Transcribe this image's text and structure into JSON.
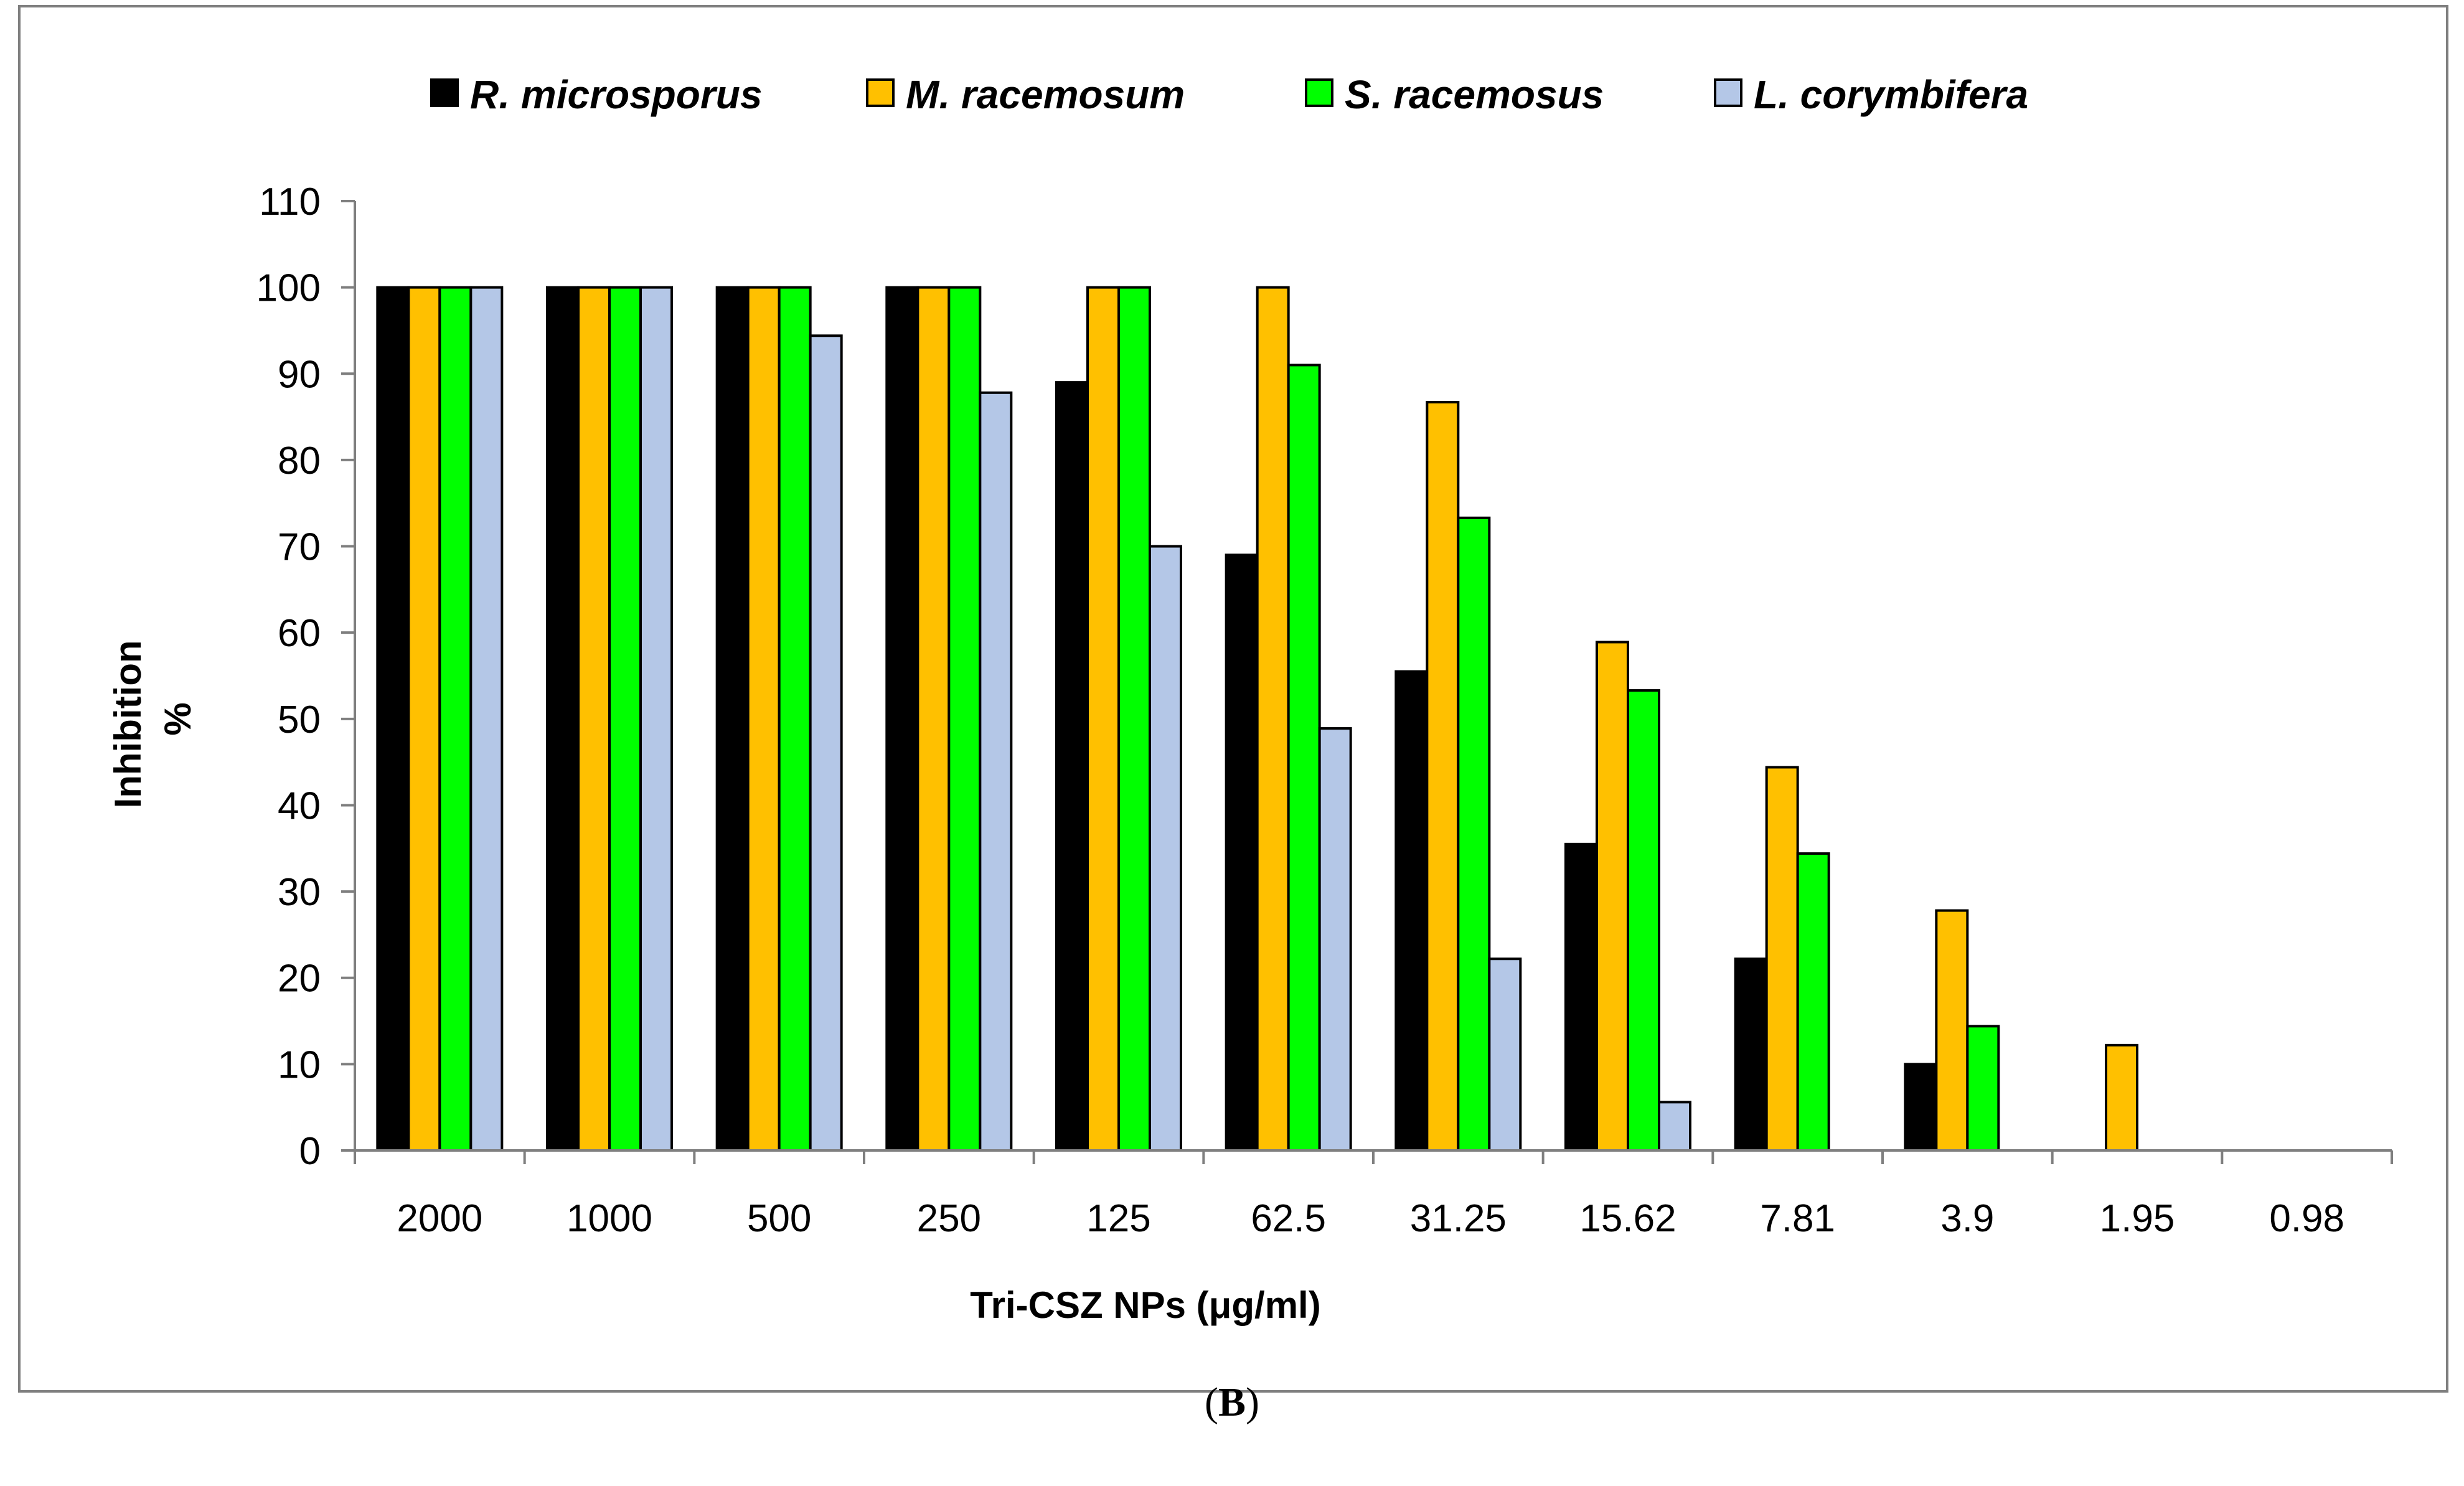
{
  "chart_data": {
    "type": "bar",
    "title": "",
    "xlabel": "Tri-CSZ NPs (μg/ml)",
    "ylabel": [
      "Inhibition",
      "%"
    ],
    "ylim": [
      0,
      110
    ],
    "yticks": [
      0,
      10,
      20,
      30,
      40,
      50,
      60,
      70,
      80,
      90,
      100,
      110
    ],
    "grid": false,
    "legend_position": "top",
    "categories": [
      "2000",
      "1000",
      "500",
      "250",
      "125",
      "62.5",
      "31.25",
      "15.62",
      "7.81",
      "3.9",
      "1.95",
      "0.98"
    ],
    "series": [
      {
        "name": "R. microsporus",
        "color": "#000000",
        "values": [
          100,
          100,
          100,
          100,
          89,
          69,
          55.5,
          35.5,
          22.2,
          10,
          0,
          0
        ]
      },
      {
        "name": "M. racemosum",
        "color": "#FFC000",
        "values": [
          100,
          100,
          100,
          100,
          100,
          100,
          86.7,
          58.9,
          44.4,
          27.8,
          12.2,
          0
        ]
      },
      {
        "name": "S. racemosus",
        "color": "#00FF00",
        "values": [
          100,
          100,
          100,
          100,
          100,
          91,
          73.3,
          53.3,
          34.4,
          14.4,
          0,
          0
        ]
      },
      {
        "name": "L. corymbifera",
        "color": "#B4C7E7",
        "values": [
          100,
          100,
          94.4,
          87.8,
          70,
          48.9,
          22.2,
          5.6,
          0,
          0,
          0,
          0
        ]
      }
    ]
  },
  "figure": {
    "panel_open": "(",
    "panel_letter": "B",
    "panel_close": ")",
    "frame_color": "#7F7F7F",
    "axis_color": "#7F7F7F",
    "bar_outline_color": "#000000"
  }
}
